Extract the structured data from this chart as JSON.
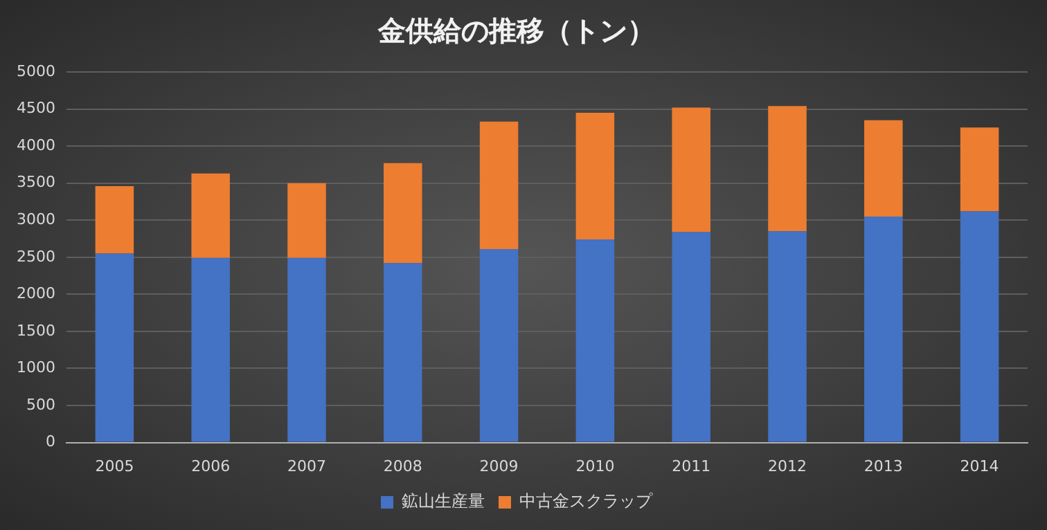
{
  "chart_data": {
    "type": "bar",
    "title": "金供給の推移（トン）",
    "stacked": true,
    "categories": [
      "2005",
      "2006",
      "2007",
      "2008",
      "2009",
      "2010",
      "2011",
      "2012",
      "2013",
      "2014"
    ],
    "series": [
      {
        "name": "鉱山生産量",
        "color": "#4472c4",
        "values": [
          2550,
          2490,
          2490,
          2420,
          2610,
          2740,
          2840,
          2850,
          3050,
          3120
        ]
      },
      {
        "name": "中古金スクラップ",
        "color": "#ed7d31",
        "values": [
          910,
          1140,
          1010,
          1350,
          1720,
          1710,
          1680,
          1690,
          1300,
          1130
        ]
      }
    ],
    "ylim": [
      0,
      5000
    ],
    "yticks": [
      0,
      500,
      1000,
      1500,
      2000,
      2500,
      3000,
      3500,
      4000,
      4500,
      5000
    ],
    "grid": "y",
    "legend": "bottom"
  }
}
